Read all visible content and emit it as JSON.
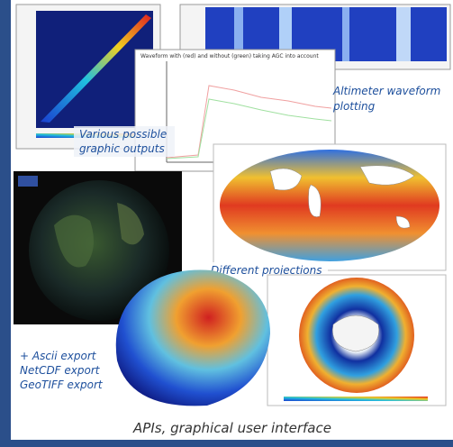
{
  "captions": {
    "graphic_outputs": [
      "Various possible",
      "graphic outputs"
    ],
    "waveform": [
      "Altimeter waveform",
      "plotting"
    ],
    "waveform_plot_title": "Waveform with (red) and without (green) taking AGC into account",
    "projections": "Different projections",
    "exports": [
      "+ Ascii export",
      "NetCDF export",
      "GeoTIFF export"
    ],
    "footer": "APIs, graphical user interface"
  }
}
